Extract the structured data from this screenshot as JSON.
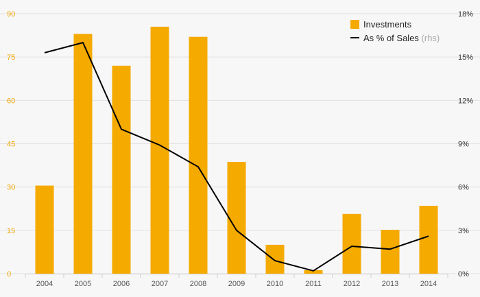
{
  "chart_data": {
    "type": "bar",
    "categories": [
      "2004",
      "2005",
      "2006",
      "2007",
      "2008",
      "2009",
      "2010",
      "2011",
      "2012",
      "2013",
      "2014"
    ],
    "series": [
      {
        "name": "Investments",
        "type": "bar",
        "axis": "left",
        "values": [
          30.5,
          83,
          72,
          85.5,
          82,
          38.7,
          10,
          1.2,
          20.7,
          15.2,
          23.5
        ]
      },
      {
        "name": "As % of Sales",
        "type": "line",
        "axis": "right",
        "values": [
          15.3,
          16.0,
          10.0,
          8.9,
          7.4,
          3.0,
          0.9,
          0.2,
          1.9,
          1.7,
          2.6
        ]
      }
    ],
    "left_axis": {
      "ylim": [
        0,
        90
      ],
      "ticks": [
        "0",
        "15",
        "30",
        "45",
        "60",
        "75",
        "90"
      ],
      "color": "#f0a500"
    },
    "right_axis": {
      "ylim": [
        0,
        18
      ],
      "ticks": [
        "0%",
        "3%",
        "6%",
        "9%",
        "12%",
        "15%",
        "18%"
      ],
      "color": "#333333"
    },
    "legend": {
      "position": "top-right",
      "items": [
        {
          "label": "Investments",
          "suffix": ""
        },
        {
          "label": "As % of Sales",
          "suffix": "(rhs)"
        }
      ]
    },
    "grid": true,
    "colors": {
      "bar": "#f5aa00",
      "line": "#000000",
      "grid": "#e2e2e2",
      "background": "#f7f7f7"
    }
  }
}
